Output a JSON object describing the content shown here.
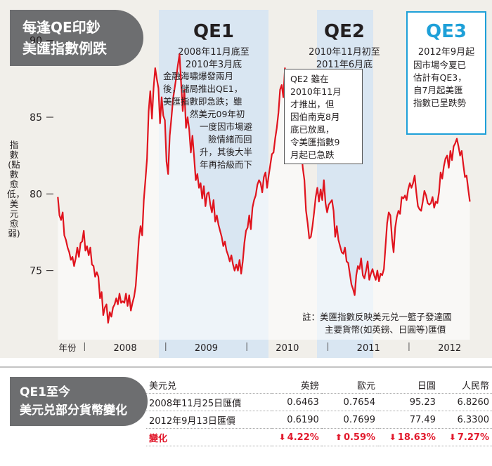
{
  "title": {
    "line1": "每逢QE印鈔",
    "line2": "美匯指數例跌"
  },
  "qe_periods": [
    {
      "name": "QE1",
      "dates": [
        "2008年11月底至",
        "2010年3月底"
      ],
      "note": [
        "金融海嘯爆發兩月",
        "後，儲局推出QE1，",
        "美匯指數即急跌；雖",
        "然美元09年初",
        "一度因市場避",
        "險情緒而回",
        "升，其後大半",
        "年再拾級而下"
      ]
    },
    {
      "name": "QE2",
      "dates": [
        "2010年11月初至",
        "2011年6月底"
      ],
      "note": [
        "QE2 雖在",
        "2010年11月",
        "才推出，但",
        "因伯南克8月",
        "底已放風，",
        "令美匯指數9",
        "月起已急跌"
      ]
    },
    {
      "name": "QE3",
      "dates": [
        "2012年9月起"
      ],
      "note": [
        "因市場今夏已",
        "估計有QE3，",
        "自7月起美匯",
        "指數已呈跌勢"
      ]
    }
  ],
  "footnote": [
    "註：美匯指數反映美元兑一籃子發達國",
    "主要貨幣(如英鎊、日圓等)匯價"
  ],
  "colors": {
    "line": "#e0141e",
    "qe_band": "#d9e6f2",
    "qe3_accent": "#1ea0d8",
    "tab": "#6d6e70"
  },
  "chart_data": {
    "type": "line",
    "title": "",
    "xlabel": "年份",
    "ylabel": "指數(點數愈低，美元愈弱)",
    "ylim": [
      70.5,
      92
    ],
    "yticks": [
      75,
      80,
      85,
      90
    ],
    "x_years": [
      "2008",
      "2009",
      "2010",
      "2011",
      "2012"
    ],
    "xlim": [
      2007.6,
      2012.8
    ],
    "grid": false,
    "series": [
      {
        "name": "",
        "points": [
          [
            2007.62,
            79.8
          ],
          [
            2007.64,
            78.6
          ],
          [
            2007.66,
            78.3
          ],
          [
            2007.68,
            78.8
          ],
          [
            2007.7,
            77.3
          ],
          [
            2007.72,
            77.0
          ],
          [
            2007.74,
            76.5
          ],
          [
            2007.76,
            76.2
          ],
          [
            2007.78,
            75.7
          ],
          [
            2007.8,
            75.9
          ],
          [
            2007.82,
            75.3
          ],
          [
            2007.84,
            75.8
          ],
          [
            2007.86,
            76.5
          ],
          [
            2007.88,
            75.9
          ],
          [
            2007.9,
            76.8
          ],
          [
            2007.92,
            76.9
          ],
          [
            2007.94,
            77.6
          ],
          [
            2007.96,
            76.3
          ],
          [
            2007.98,
            76.6
          ],
          [
            2008.0,
            76.0
          ],
          [
            2008.02,
            76.5
          ],
          [
            2008.04,
            75.4
          ],
          [
            2008.06,
            75.3
          ],
          [
            2008.08,
            74.6
          ],
          [
            2008.1,
            74.9
          ],
          [
            2008.12,
            74.6
          ],
          [
            2008.14,
            73.2
          ],
          [
            2008.16,
            73.6
          ],
          [
            2008.18,
            72.1
          ],
          [
            2008.2,
            72.6
          ],
          [
            2008.22,
            72.8
          ],
          [
            2008.24,
            71.6
          ],
          [
            2008.26,
            72.3
          ],
          [
            2008.28,
            72.0
          ],
          [
            2008.3,
            72.6
          ],
          [
            2008.32,
            72.8
          ],
          [
            2008.34,
            73.2
          ],
          [
            2008.36,
            72.8
          ],
          [
            2008.38,
            73.5
          ],
          [
            2008.4,
            72.9
          ],
          [
            2008.42,
            73.0
          ],
          [
            2008.44,
            72.9
          ],
          [
            2008.46,
            73.5
          ],
          [
            2008.48,
            72.7
          ],
          [
            2008.5,
            73.4
          ],
          [
            2008.52,
            72.4
          ],
          [
            2008.54,
            72.9
          ],
          [
            2008.56,
            73.3
          ],
          [
            2008.58,
            74.0
          ],
          [
            2008.6,
            75.5
          ],
          [
            2008.62,
            77.1
          ],
          [
            2008.64,
            77.9
          ],
          [
            2008.66,
            77.3
          ],
          [
            2008.68,
            79.6
          ],
          [
            2008.7,
            80.9
          ],
          [
            2008.72,
            82.3
          ],
          [
            2008.74,
            85.4
          ],
          [
            2008.76,
            86.7
          ],
          [
            2008.78,
            84.9
          ],
          [
            2008.8,
            86.9
          ],
          [
            2008.82,
            88.2
          ],
          [
            2008.84,
            87.5
          ],
          [
            2008.86,
            86.9
          ],
          [
            2008.88,
            84.6
          ],
          [
            2008.9,
            86.3
          ],
          [
            2008.92,
            85.1
          ],
          [
            2008.94,
            84.8
          ],
          [
            2008.96,
            82.1
          ],
          [
            2008.98,
            81.3
          ],
          [
            2009.0,
            83.8
          ],
          [
            2009.02,
            84.9
          ],
          [
            2009.04,
            86.2
          ],
          [
            2009.06,
            86.9
          ],
          [
            2009.08,
            87.6
          ],
          [
            2009.1,
            88.4
          ],
          [
            2009.12,
            89.1
          ],
          [
            2009.14,
            87.2
          ],
          [
            2009.16,
            85.4
          ],
          [
            2009.18,
            86.8
          ],
          [
            2009.2,
            84.3
          ],
          [
            2009.22,
            85.0
          ],
          [
            2009.24,
            84.2
          ],
          [
            2009.26,
            82.7
          ],
          [
            2009.28,
            83.8
          ],
          [
            2009.3,
            82.4
          ],
          [
            2009.32,
            80.9
          ],
          [
            2009.34,
            81.3
          ],
          [
            2009.36,
            80.4
          ],
          [
            2009.38,
            80.7
          ],
          [
            2009.4,
            79.7
          ],
          [
            2009.42,
            80.5
          ],
          [
            2009.44,
            79.2
          ],
          [
            2009.46,
            80.0
          ],
          [
            2009.48,
            80.1
          ],
          [
            2009.5,
            79.3
          ],
          [
            2009.52,
            78.8
          ],
          [
            2009.54,
            79.6
          ],
          [
            2009.56,
            78.2
          ],
          [
            2009.58,
            78.6
          ],
          [
            2009.6,
            78.0
          ],
          [
            2009.62,
            77.6
          ],
          [
            2009.64,
            77.2
          ],
          [
            2009.66,
            76.6
          ],
          [
            2009.68,
            76.9
          ],
          [
            2009.7,
            76.3
          ],
          [
            2009.72,
            76.0
          ],
          [
            2009.74,
            75.6
          ],
          [
            2009.76,
            76.0
          ],
          [
            2009.78,
            75.4
          ],
          [
            2009.8,
            75.0
          ],
          [
            2009.82,
            75.4
          ],
          [
            2009.84,
            75.0
          ],
          [
            2009.86,
            75.7
          ],
          [
            2009.88,
            74.8
          ],
          [
            2009.9,
            75.6
          ],
          [
            2009.92,
            76.8
          ],
          [
            2009.94,
            77.6
          ],
          [
            2009.96,
            77.8
          ],
          [
            2009.98,
            78.6
          ],
          [
            2010.0,
            77.7
          ],
          [
            2010.02,
            79.1
          ],
          [
            2010.04,
            79.6
          ],
          [
            2010.06,
            79.9
          ],
          [
            2010.08,
            80.6
          ],
          [
            2010.1,
            80.9
          ],
          [
            2010.12,
            80.7
          ],
          [
            2010.14,
            80.1
          ],
          [
            2010.16,
            81.1
          ],
          [
            2010.18,
            81.4
          ],
          [
            2010.2,
            80.4
          ],
          [
            2010.22,
            81.2
          ],
          [
            2010.24,
            81.9
          ],
          [
            2010.26,
            82.6
          ],
          [
            2010.28,
            82.7
          ],
          [
            2010.3,
            83.6
          ],
          [
            2010.32,
            84.3
          ],
          [
            2010.34,
            85.3
          ],
          [
            2010.36,
            86.8
          ],
          [
            2010.38,
            87.1
          ],
          [
            2010.4,
            86.3
          ],
          [
            2010.42,
            88.2
          ],
          [
            2010.44,
            87.2
          ],
          [
            2010.46,
            85.7
          ],
          [
            2010.48,
            86.0
          ],
          [
            2010.5,
            84.4
          ],
          [
            2010.52,
            84.7
          ],
          [
            2010.54,
            82.6
          ],
          [
            2010.56,
            82.4
          ],
          [
            2010.58,
            83.2
          ],
          [
            2010.6,
            83.0
          ],
          [
            2010.62,
            82.9
          ],
          [
            2010.64,
            81.7
          ],
          [
            2010.66,
            80.9
          ],
          [
            2010.68,
            78.9
          ],
          [
            2010.7,
            78.1
          ],
          [
            2010.72,
            77.1
          ],
          [
            2010.74,
            77.2
          ],
          [
            2010.76,
            77.9
          ],
          [
            2010.78,
            78.8
          ],
          [
            2010.8,
            79.8
          ],
          [
            2010.82,
            80.4
          ],
          [
            2010.84,
            79.5
          ],
          [
            2010.86,
            80.3
          ],
          [
            2010.88,
            79.6
          ],
          [
            2010.9,
            80.9
          ],
          [
            2010.92,
            79.4
          ],
          [
            2010.94,
            78.8
          ],
          [
            2010.96,
            79.3
          ],
          [
            2011.0,
            79.6
          ],
          [
            2011.02,
            78.9
          ],
          [
            2011.04,
            77.2
          ],
          [
            2011.06,
            77.9
          ],
          [
            2011.08,
            77.0
          ],
          [
            2011.1,
            76.6
          ],
          [
            2011.12,
            76.2
          ],
          [
            2011.14,
            76.1
          ],
          [
            2011.16,
            76.5
          ],
          [
            2011.18,
            75.6
          ],
          [
            2011.2,
            75.5
          ],
          [
            2011.22,
            74.8
          ],
          [
            2011.24,
            74.1
          ],
          [
            2011.26,
            73.8
          ],
          [
            2011.28,
            73.4
          ],
          [
            2011.3,
            74.7
          ],
          [
            2011.32,
            75.3
          ],
          [
            2011.34,
            75.1
          ],
          [
            2011.36,
            75.8
          ],
          [
            2011.38,
            74.7
          ],
          [
            2011.4,
            74.5
          ],
          [
            2011.42,
            75.0
          ],
          [
            2011.44,
            75.6
          ],
          [
            2011.46,
            74.4
          ],
          [
            2011.48,
            74.8
          ],
          [
            2011.5,
            75.1
          ],
          [
            2011.52,
            74.7
          ],
          [
            2011.54,
            74.4
          ],
          [
            2011.56,
            75.0
          ],
          [
            2011.58,
            74.3
          ],
          [
            2011.6,
            74.8
          ],
          [
            2011.62,
            74.7
          ],
          [
            2011.64,
            75.1
          ],
          [
            2011.66,
            76.6
          ],
          [
            2011.68,
            78.1
          ],
          [
            2011.7,
            78.8
          ],
          [
            2011.72,
            78.6
          ],
          [
            2011.74,
            77.1
          ],
          [
            2011.76,
            76.2
          ],
          [
            2011.78,
            77.8
          ],
          [
            2011.8,
            78.5
          ],
          [
            2011.82,
            78.9
          ],
          [
            2011.84,
            78.7
          ],
          [
            2011.86,
            79.8
          ],
          [
            2011.88,
            79.7
          ],
          [
            2011.9,
            79.9
          ],
          [
            2011.92,
            79.6
          ],
          [
            2011.94,
            80.3
          ],
          [
            2011.96,
            80.7
          ],
          [
            2011.98,
            80.4
          ],
          [
            2012.0,
            80.7
          ],
          [
            2012.02,
            81.2
          ],
          [
            2012.04,
            80.1
          ],
          [
            2012.06,
            79.2
          ],
          [
            2012.08,
            79.0
          ],
          [
            2012.1,
            78.9
          ],
          [
            2012.12,
            79.5
          ],
          [
            2012.14,
            80.2
          ],
          [
            2012.16,
            79.9
          ],
          [
            2012.18,
            79.4
          ],
          [
            2012.2,
            79.3
          ],
          [
            2012.22,
            79.4
          ],
          [
            2012.24,
            79.8
          ],
          [
            2012.26,
            79.1
          ],
          [
            2012.28,
            79.5
          ],
          [
            2012.3,
            79.4
          ],
          [
            2012.32,
            80.1
          ],
          [
            2012.34,
            81.4
          ],
          [
            2012.36,
            81.0
          ],
          [
            2012.38,
            81.8
          ],
          [
            2012.4,
            82.3
          ],
          [
            2012.42,
            82.5
          ],
          [
            2012.44,
            81.7
          ],
          [
            2012.46,
            82.8
          ],
          [
            2012.48,
            82.2
          ],
          [
            2012.5,
            83.1
          ],
          [
            2012.52,
            83.3
          ],
          [
            2012.54,
            83.6
          ],
          [
            2012.56,
            83.1
          ],
          [
            2012.58,
            82.5
          ],
          [
            2012.6,
            82.8
          ],
          [
            2012.62,
            81.9
          ],
          [
            2012.64,
            81.1
          ],
          [
            2012.66,
            81.2
          ],
          [
            2012.68,
            80.3
          ],
          [
            2012.7,
            79.5
          ]
        ]
      }
    ]
  },
  "fx_table": {
    "tab_title": [
      "QE1至今",
      "美元兑部分貨幣變化"
    ],
    "header": [
      "美元兑",
      "英鎊",
      "歐元",
      "日圓",
      "人民幣"
    ],
    "rows": [
      [
        "2008年11月25日匯價",
        "0.6463",
        "0.7654",
        "95.23",
        "6.8260"
      ],
      [
        "2012年9月13日匯價",
        "0.6190",
        "0.7699",
        "77.49",
        "6.3300"
      ]
    ],
    "change_label": "變化",
    "changes": [
      {
        "dir": "down",
        "value": "4.22%"
      },
      {
        "dir": "up",
        "value": "0.59%"
      },
      {
        "dir": "down",
        "value": "18.63%"
      },
      {
        "dir": "down",
        "value": "7.27%"
      }
    ]
  }
}
